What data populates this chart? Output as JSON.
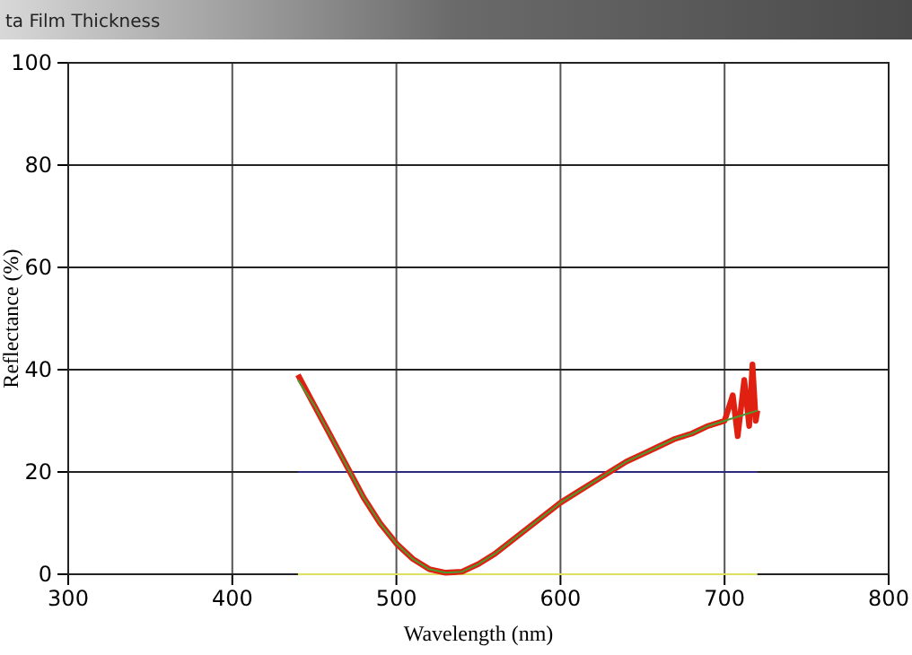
{
  "chart_data": {
    "type": "line",
    "title": "ta Film Thickness",
    "xlabel": "Wavelength (nm)",
    "ylabel": "Reflectance (%)",
    "xlim": [
      300,
      800
    ],
    "xticks": [
      300,
      400,
      500,
      600,
      700,
      800
    ],
    "ylim": [
      0,
      100
    ],
    "yticks": [
      0,
      20,
      40,
      60,
      80,
      100
    ],
    "grid": true,
    "marker": "none",
    "line_style": "solid",
    "series": [
      {
        "color": "#2a2a80",
        "x": [
          440,
          720
        ],
        "values": [
          20,
          20
        ]
      },
      {
        "color": "#e0e060",
        "x": [
          440,
          720
        ],
        "values": [
          0,
          0
        ]
      },
      {
        "color": "#e02010",
        "x": [
          440,
          450,
          460,
          470,
          480,
          490,
          500,
          510,
          520,
          530,
          540,
          550,
          560,
          570,
          580,
          590,
          600,
          610,
          620,
          630,
          640,
          650,
          660,
          670,
          680,
          690,
          700,
          705,
          708,
          712,
          715,
          717,
          719,
          720
        ],
        "values": [
          39,
          33,
          27,
          21,
          15,
          10,
          6,
          3,
          1,
          0.3,
          0.5,
          2,
          4,
          6.5,
          9,
          11.5,
          14,
          16,
          18,
          20,
          22,
          23.5,
          25,
          26.5,
          27.5,
          29,
          30,
          35,
          27,
          38,
          29,
          41,
          30,
          32
        ]
      },
      {
        "color": "#4a9a30",
        "x": [
          440,
          450,
          460,
          470,
          480,
          490,
          500,
          510,
          520,
          530,
          540,
          550,
          560,
          570,
          580,
          590,
          600,
          610,
          620,
          630,
          640,
          650,
          660,
          670,
          680,
          690,
          700,
          710,
          720
        ],
        "values": [
          38,
          33,
          27,
          21,
          15,
          10,
          6,
          3,
          1,
          0.3,
          0.5,
          2,
          4,
          6.5,
          9,
          11.5,
          14,
          16,
          18,
          20,
          22,
          23.5,
          25,
          26.5,
          27.5,
          29,
          30,
          31,
          32
        ]
      }
    ]
  }
}
